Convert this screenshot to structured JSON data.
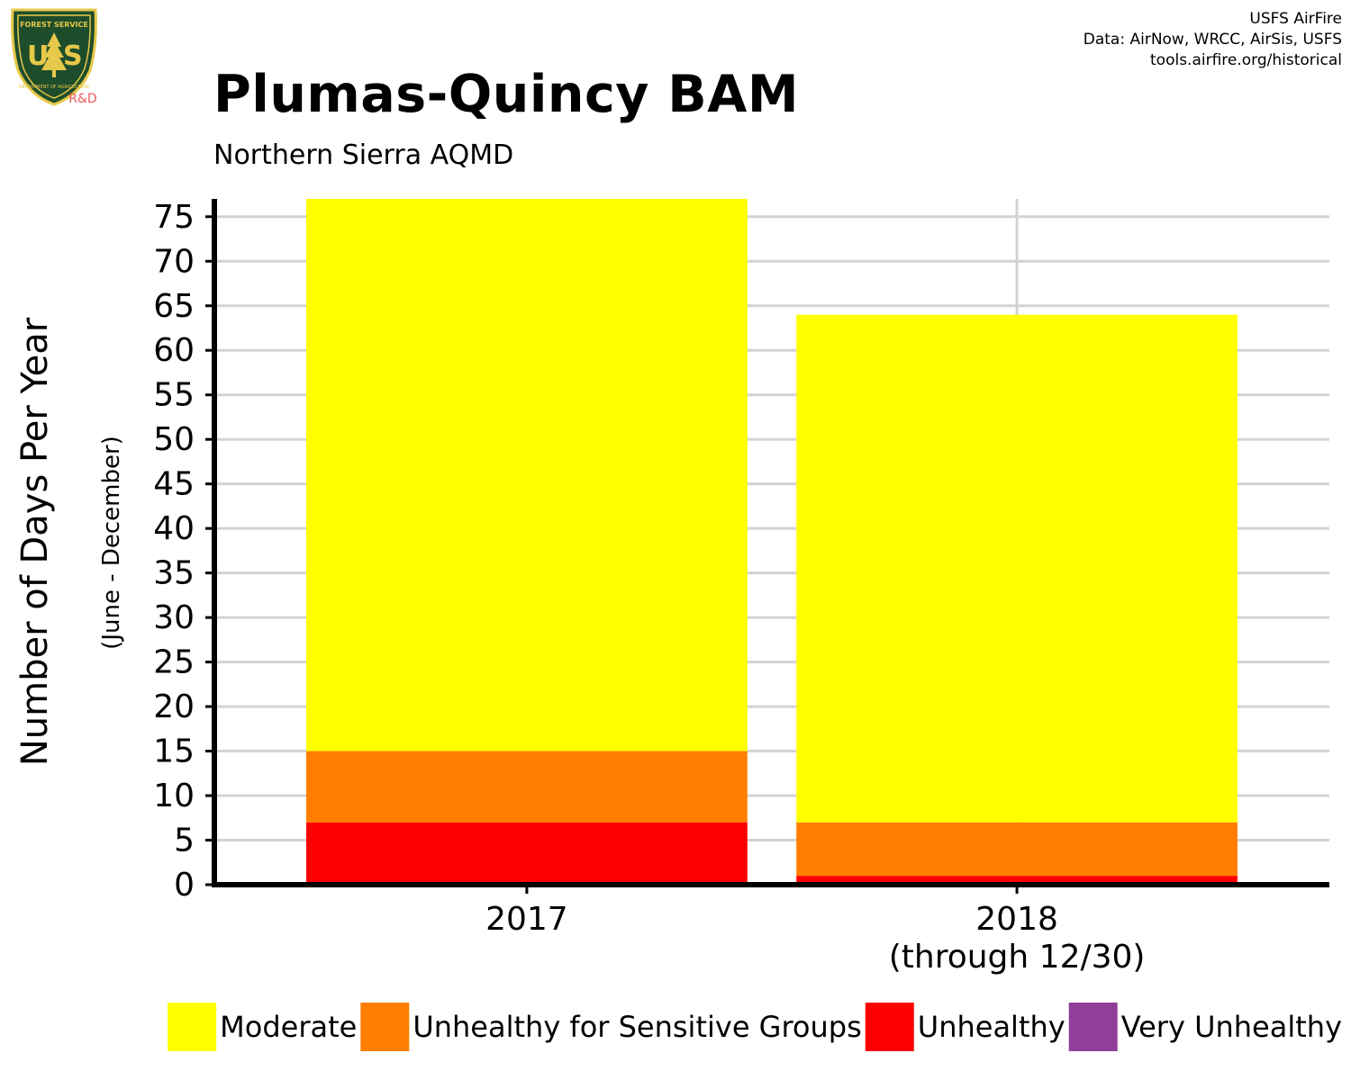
{
  "header": {
    "credit_lines": [
      "USFS AirFire",
      "Data: AirNow, WRCC, AirSis, USFS",
      "tools.airfire.org/historical"
    ],
    "logo_text": {
      "top": "FOREST SERVICE",
      "main": "US",
      "bottom": "DEPARTMENT OF AGRICULTURE",
      "badge": "R&D"
    },
    "title": "Plumas-Quincy BAM",
    "subtitle": "Northern Sierra AQMD"
  },
  "colors": {
    "moderate": "#ffff00",
    "usg": "#ff7e00",
    "unhealthy": "#ff0000",
    "very_unhealthy": "#8f3f97",
    "grid": "#d3d3d3",
    "axis": "#000000",
    "logo_green": "#1e4d2b",
    "logo_gold": "#e6c84a",
    "rd_red": "#e8595a"
  },
  "chart_data": {
    "type": "bar",
    "stacked": true,
    "categories": [
      [
        "2017"
      ],
      [
        "2018",
        "(through 12/30)"
      ]
    ],
    "series": [
      {
        "name": "Unhealthy",
        "color_key": "unhealthy",
        "values": [
          7,
          1
        ]
      },
      {
        "name": "Unhealthy for Sensitive Groups",
        "color_key": "usg",
        "values": [
          8,
          6
        ]
      },
      {
        "name": "Moderate",
        "color_key": "moderate",
        "values": [
          62,
          57
        ]
      },
      {
        "name": "Very Unhealthy",
        "color_key": "very_unhealthy",
        "values": [
          0,
          0
        ]
      }
    ],
    "legend_order": [
      "Moderate",
      "Unhealthy for Sensitive Groups",
      "Unhealthy",
      "Very Unhealthy"
    ],
    "legend_position": "bottom",
    "ylabel": "Number of Days Per Year",
    "ylabel_sub": "(June - December)",
    "xlabel": "",
    "ylim": [
      0,
      77
    ],
    "yticks": [
      0,
      5,
      10,
      15,
      20,
      25,
      30,
      35,
      40,
      45,
      50,
      55,
      60,
      65,
      70,
      75
    ],
    "grid": true
  }
}
